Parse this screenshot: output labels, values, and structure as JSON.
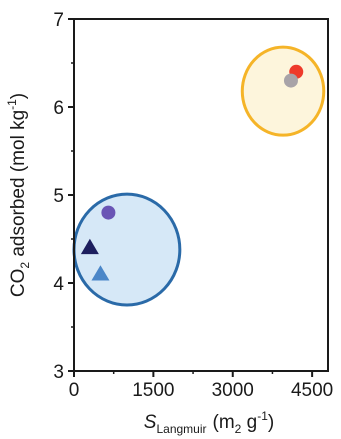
{
  "chart_data": {
    "type": "scatter",
    "title": "",
    "xlabel": {
      "main": "S",
      "sub": "Langmuir",
      "units": "(m",
      "units_sub": "2",
      "units_mid": " g",
      "units_sup": "-1",
      "units_end": ")"
    },
    "ylabel": {
      "pre": "CO",
      "sub": "2",
      "main": " adsorbed (mol kg",
      "sup": "-1",
      "end": ")"
    },
    "xlim": [
      0,
      4800
    ],
    "ylim": [
      3,
      7
    ],
    "x_ticks": [
      0,
      1500,
      3000,
      4500
    ],
    "x_tick_labels": [
      "0",
      "1500",
      "3000",
      "4500"
    ],
    "y_ticks": [
      3,
      4,
      5,
      6,
      7
    ],
    "y_tick_labels": [
      "3",
      "4",
      "5",
      "6",
      "7"
    ],
    "grid": false,
    "legend": "none",
    "points": [
      {
        "x": 650,
        "y": 4.8,
        "shape": "circle",
        "color": "#6a55b5"
      },
      {
        "x": 300,
        "y": 4.4,
        "shape": "triangle",
        "color": "#1d1f5e"
      },
      {
        "x": 500,
        "y": 4.1,
        "shape": "triangle",
        "color": "#4a86c8"
      },
      {
        "x": 4200,
        "y": 6.4,
        "shape": "circle",
        "color": "#ee3a2a"
      },
      {
        "x": 4100,
        "y": 6.3,
        "shape": "circle",
        "color": "#a8a3a8"
      }
    ],
    "groups": [
      {
        "cx": 1000,
        "cy": 4.38,
        "rx": 1000,
        "ry": 0.63,
        "fill": "#d6e8f7",
        "stroke": "#2a6aa8"
      },
      {
        "cx": 3950,
        "cy": 6.18,
        "rx": 770,
        "ry": 0.5,
        "fill": "#fdf5dc",
        "stroke": "#f5b428"
      }
    ]
  }
}
